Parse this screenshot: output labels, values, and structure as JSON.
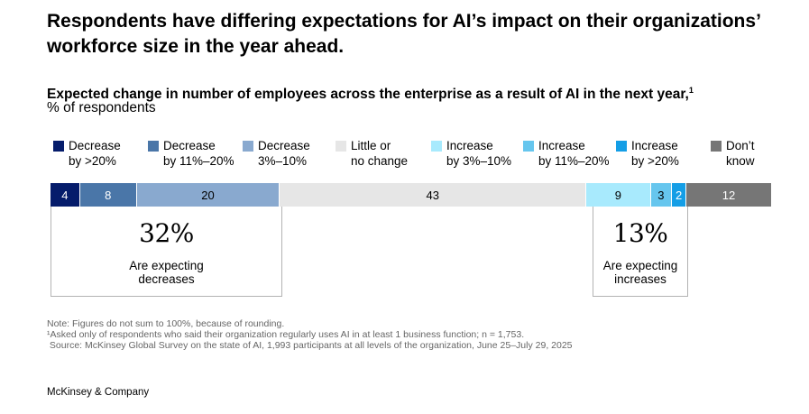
{
  "headline": "Respondents have differing expectations for AI’s impact on their organizations’ workforce size in the year ahead.",
  "subtitle": "Expected change in number of employees across the enterprise as a result of AI in the next year,",
  "subtitle_footnote": "1",
  "unit_label": "% of respondents",
  "legend": [
    {
      "line1": "Decrease",
      "line2": "by >20%",
      "color": "#051c6b"
    },
    {
      "line1": "Decrease",
      "line2": "by 11%–20%",
      "color": "#4a76a8"
    },
    {
      "line1": "Decrease",
      "line2": "3%–10%",
      "color": "#89a9cf"
    },
    {
      "line1": "Little or",
      "line2": "no change",
      "color": "#e6e6e6"
    },
    {
      "line1": "Increase",
      "line2": "by 3%–10%",
      "color": "#a8eafd"
    },
    {
      "line1": "Increase",
      "line2": "by 11%–20%",
      "color": "#66c6ee"
    },
    {
      "line1": "Increase",
      "line2": "by >20%",
      "color": "#149ee6"
    },
    {
      "line1": "Don’t",
      "line2": "know",
      "color": "#767676"
    }
  ],
  "chart_data": {
    "type": "bar",
    "orientation": "horizontal-stacked-100",
    "title": "Expected change in number of employees across the enterprise as a result of AI in the next year",
    "unit": "% of respondents",
    "categories": [
      "Decrease by >20%",
      "Decrease by 11%–20%",
      "Decrease 3%–10%",
      "Little or no change",
      "Increase by 3%–10%",
      "Increase by 11%–20%",
      "Increase by >20%",
      "Don’t know"
    ],
    "values": [
      4,
      8,
      20,
      43,
      9,
      3,
      2,
      12
    ],
    "label_colors": [
      "#ffffff",
      "#ffffff",
      "#000000",
      "#000000",
      "#000000",
      "#000000",
      "#ffffff",
      "#ffffff"
    ],
    "annotations": [
      {
        "value": "32%",
        "text": "Are expecting decreases",
        "covers": "Decrease by >20%, Decrease by 11%–20%, Decrease 3%–10%"
      },
      {
        "value": "13%",
        "text": "Are expecting increases",
        "covers": "Increase by 3%–10%, Increase by 11%–20%, Increase by >20%"
      }
    ]
  },
  "callouts": {
    "decreases": {
      "value": "32%",
      "line1": "Are expecting",
      "line2": "decreases"
    },
    "increases": {
      "value": "13%",
      "line1": "Are expecting",
      "line2": "increases"
    }
  },
  "notes": {
    "note": "Note: Figures do not sum to 100%, because of rounding.",
    "footnote1": "¹Asked only of respondents who said their organization regularly uses AI in at least 1 business function; n = 1,753.",
    "source": " Source: McKinsey Global Survey on the state of AI, 1,993 participants at all levels of the organization, June 25–July 29, 2025"
  },
  "brand": "McKinsey & Company"
}
